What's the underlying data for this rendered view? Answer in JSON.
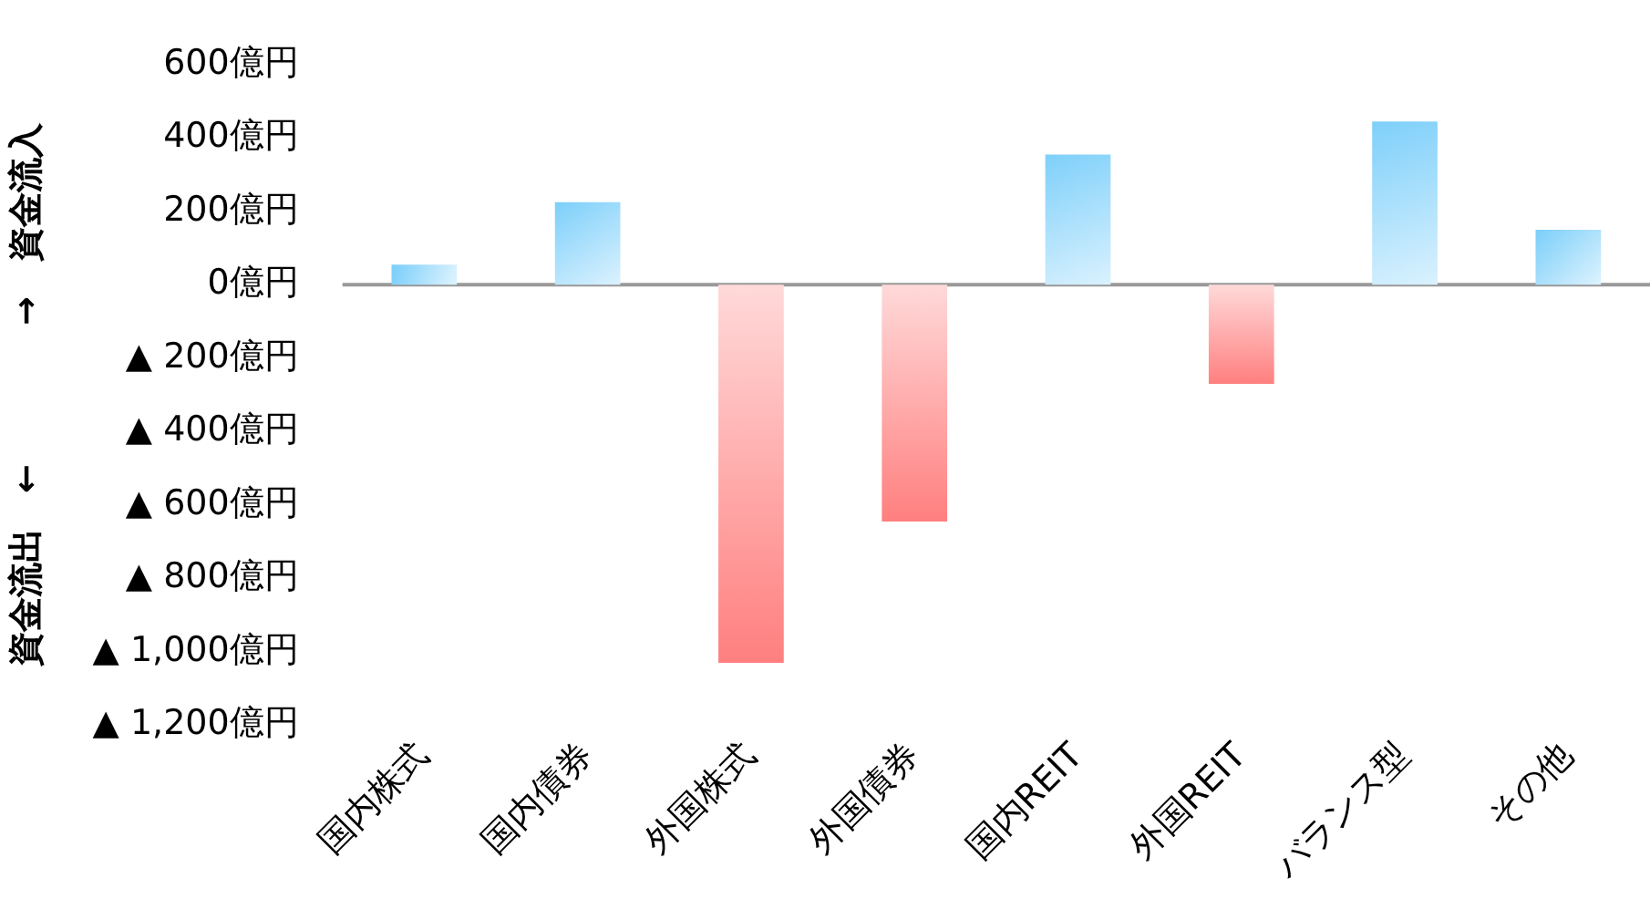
{
  "chart_data": {
    "type": "bar",
    "ylabel": "資金流出　←　　　　→　資金流入",
    "categories": [
      "国内株式",
      "国内債券",
      "外国株式",
      "外国債券",
      "国内REIT",
      "外国REIT",
      "バランス型",
      "その他"
    ],
    "values": [
      55,
      225,
      -1030,
      -645,
      355,
      -270,
      445,
      150
    ],
    "colors": [
      "#7fd0fa",
      "#7fd0fa",
      "#ff7f7f",
      "#ff7f7f",
      "#7fd0fa",
      "#ff7f7f",
      "#7fd0fa",
      "#7fd0fa"
    ],
    "ylim": [
      -1200,
      600
    ],
    "yticks": [
      {
        "value": 600,
        "label": "600億円"
      },
      {
        "value": 400,
        "label": "400億円"
      },
      {
        "value": 200,
        "label": "200億円"
      },
      {
        "value": 0,
        "label": "0億円"
      },
      {
        "value": -200,
        "label": "▲ 200億円"
      },
      {
        "value": -400,
        "label": "▲ 400億円"
      },
      {
        "value": -600,
        "label": "▲ 600億円"
      },
      {
        "value": -800,
        "label": "▲ 800億円"
      },
      {
        "value": -1000,
        "label": "▲ 1,000億円"
      },
      {
        "value": -1200,
        "label": "▲ 1,200億円"
      }
    ],
    "grid": false,
    "ref_lines": [
      {
        "axis": "y",
        "value": 0,
        "color": "#999999"
      }
    ],
    "legend": false
  }
}
